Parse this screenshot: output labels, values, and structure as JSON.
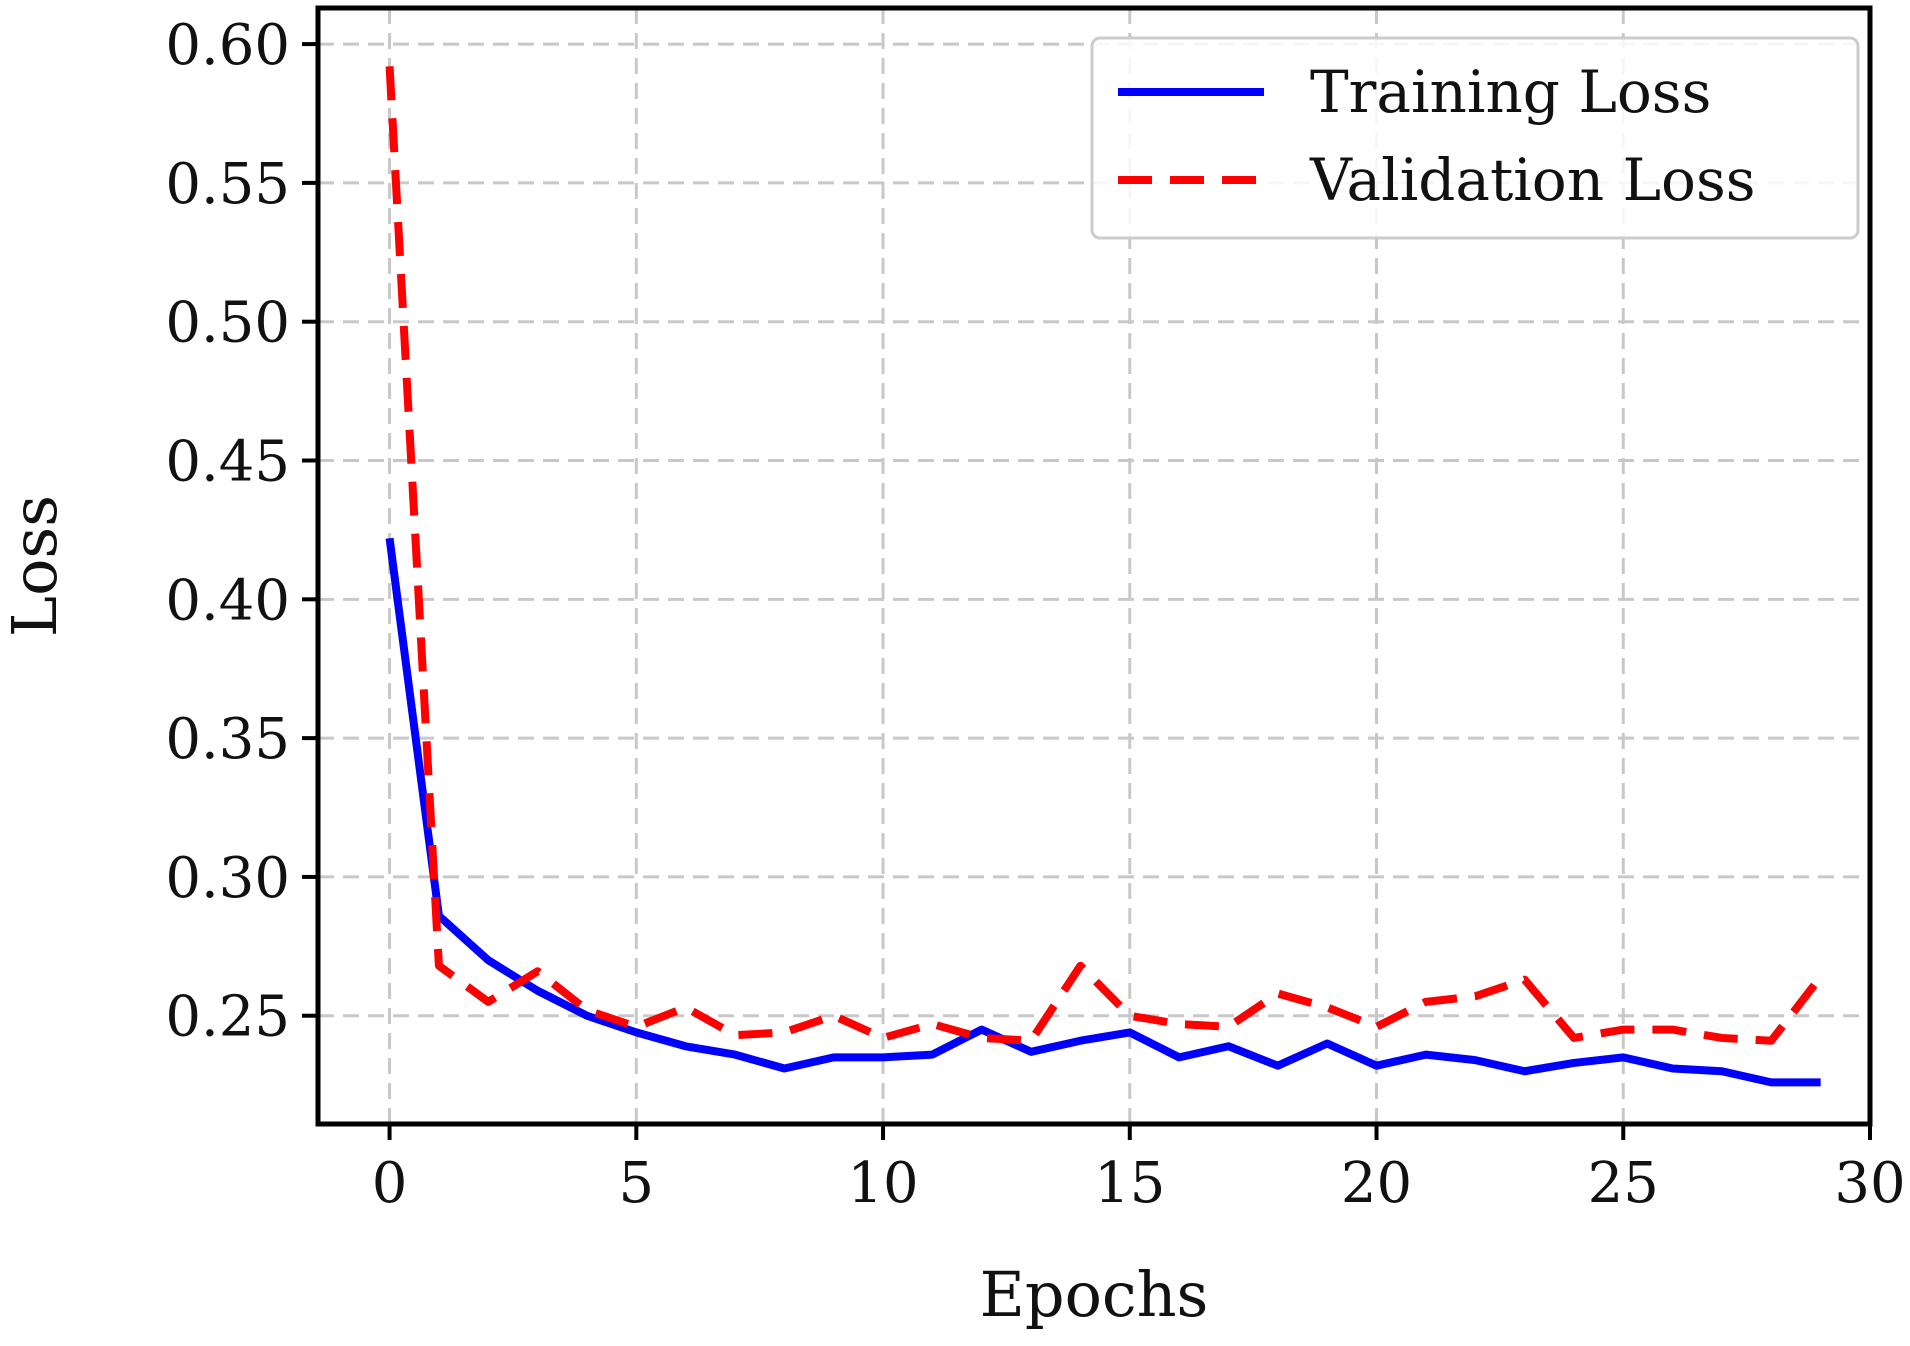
{
  "chart_data": {
    "type": "line",
    "xlabel": "Epochs",
    "ylabel": "Loss",
    "xlim": [
      -1.45,
      30.0
    ],
    "ylim": [
      0.211,
      0.613
    ],
    "xticks": [
      0,
      5,
      10,
      15,
      20,
      25,
      30
    ],
    "yticks": [
      0.25,
      0.3,
      0.35,
      0.4,
      0.45,
      0.5,
      0.55,
      0.6
    ],
    "ytick_labels": [
      "0.25",
      "0.30",
      "0.35",
      "0.40",
      "0.45",
      "0.50",
      "0.55",
      "0.60"
    ],
    "grid": true,
    "legend_position": "top-right",
    "x": [
      0,
      1,
      2,
      3,
      4,
      5,
      6,
      7,
      8,
      9,
      10,
      11,
      12,
      13,
      14,
      15,
      16,
      17,
      18,
      19,
      20,
      21,
      22,
      23,
      24,
      25,
      26,
      27,
      28,
      29
    ],
    "series": [
      {
        "name": "Training Loss",
        "color": "#0000ff",
        "style": "solid",
        "values": [
          0.422,
          0.286,
          0.27,
          0.259,
          0.25,
          0.244,
          0.239,
          0.236,
          0.231,
          0.235,
          0.235,
          0.236,
          0.245,
          0.237,
          0.241,
          0.244,
          0.235,
          0.239,
          0.232,
          0.24,
          0.232,
          0.236,
          0.234,
          0.23,
          0.233,
          0.235,
          0.231,
          0.23,
          0.226,
          0.226
        ]
      },
      {
        "name": "Validation Loss",
        "color": "#ff0000",
        "style": "dashed",
        "values": [
          0.592,
          0.268,
          0.255,
          0.266,
          0.252,
          0.246,
          0.253,
          0.243,
          0.244,
          0.25,
          0.242,
          0.247,
          0.242,
          0.241,
          0.268,
          0.25,
          0.247,
          0.246,
          0.258,
          0.253,
          0.246,
          0.255,
          0.257,
          0.263,
          0.242,
          0.245,
          0.245,
          0.242,
          0.241,
          0.264
        ]
      }
    ]
  }
}
